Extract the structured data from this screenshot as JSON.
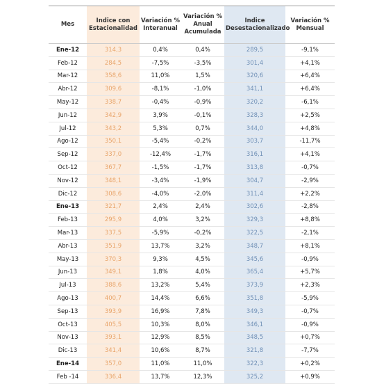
{
  "table": {
    "header": [
      "Mes",
      "Indice con Estacionalidad",
      "Variación % Interanual",
      "Variación % Anual Acumulada",
      "Indice Desestacionalizado",
      "Variación % Mensual"
    ],
    "rows": [
      [
        "Ene-12",
        "314,3",
        "0,4%",
        "0,4%",
        "289,5",
        "-9,1%"
      ],
      [
        "Feb-12",
        "284,5",
        "-7,5%",
        "-3,5%",
        "301,4",
        "+4,1%"
      ],
      [
        "Mar-12",
        "358,6",
        "11,0%",
        "1,5%",
        "320,6",
        "+6,4%"
      ],
      [
        "Abr-12",
        "309,6",
        "-8,1%",
        "-1,0%",
        "341,1",
        "+6,4%"
      ],
      [
        "May-12",
        "338,7",
        "-0,4%",
        "-0,9%",
        "320,2",
        "-6,1%"
      ],
      [
        "Jun-12",
        "342,9",
        "3,9%",
        "-0,1%",
        "328,3",
        "+2,5%"
      ],
      [
        "Jul-12",
        "343,2",
        "5,3%",
        "0,7%",
        "344,0",
        "+4,8%"
      ],
      [
        "Ago-12",
        "350,1",
        "-5,4%",
        "-0,2%",
        "303,7",
        "-11,7%"
      ],
      [
        "Sep-12",
        "337,0",
        "-12,4%",
        "-1,7%",
        "316,1",
        "+4,1%"
      ],
      [
        "Oct-12",
        "367,7",
        "-1,5%",
        "-1,7%",
        "313,8",
        "-0,7%"
      ],
      [
        "Nov-12",
        "348,1",
        "-3,4%",
        "-1,9%",
        "304,7",
        "-2,9%"
      ],
      [
        "Dic-12",
        "308,6",
        "-4,0%",
        "-2,0%",
        "311,4",
        "+2,2%"
      ],
      [
        "Ene-13",
        "321,7",
        "2,4%",
        "2,4%",
        "302,6",
        "-2,8%"
      ],
      [
        "Feb-13",
        "295,9",
        "4,0%",
        "3,2%",
        "329,3",
        "+8,8%"
      ],
      [
        "Mar-13",
        "337,5",
        "-5,9%",
        "-0,2%",
        "322,5",
        "-2,1%"
      ],
      [
        "Abr-13",
        "351,9",
        "13,7%",
        "3,2%",
        "348,7",
        "+8,1%"
      ],
      [
        "May-13",
        "370,3",
        "9,3%",
        "4,5%",
        "345,6",
        "-0,9%"
      ],
      [
        "Jun-13",
        "349,1",
        "1,8%",
        "4,0%",
        "365,4",
        "+5,7%"
      ],
      [
        "Jul-13",
        "388,6",
        "13,2%",
        "5,4%",
        "373,9",
        "+2,3%"
      ],
      [
        "Ago-13",
        "400,7",
        "14,4%",
        "6,6%",
        "351,8",
        "-5,9%"
      ],
      [
        "Sep-13",
        "393,9",
        "16,9%",
        "7,8%",
        "349,3",
        "-0,7%"
      ],
      [
        "Oct-13",
        "405,5",
        "10,3%",
        "8,0%",
        "346,1",
        "-0,9%"
      ],
      [
        "Nov-13",
        "393,1",
        "12,9%",
        "8,5%",
        "348,5",
        "+0,7%"
      ],
      [
        "Dic-13",
        "341,4",
        "10,6%",
        "8,7%",
        "321,8",
        "-7,7%"
      ],
      [
        "Ene-14",
        "357,0",
        "11,0%",
        "11,0%",
        "322,3",
        "+0,2%"
      ],
      [
        "Feb -14",
        "336,4",
        "13,7%",
        "12,3%",
        "325,2",
        "+0,9%"
      ]
    ]
  }
}
